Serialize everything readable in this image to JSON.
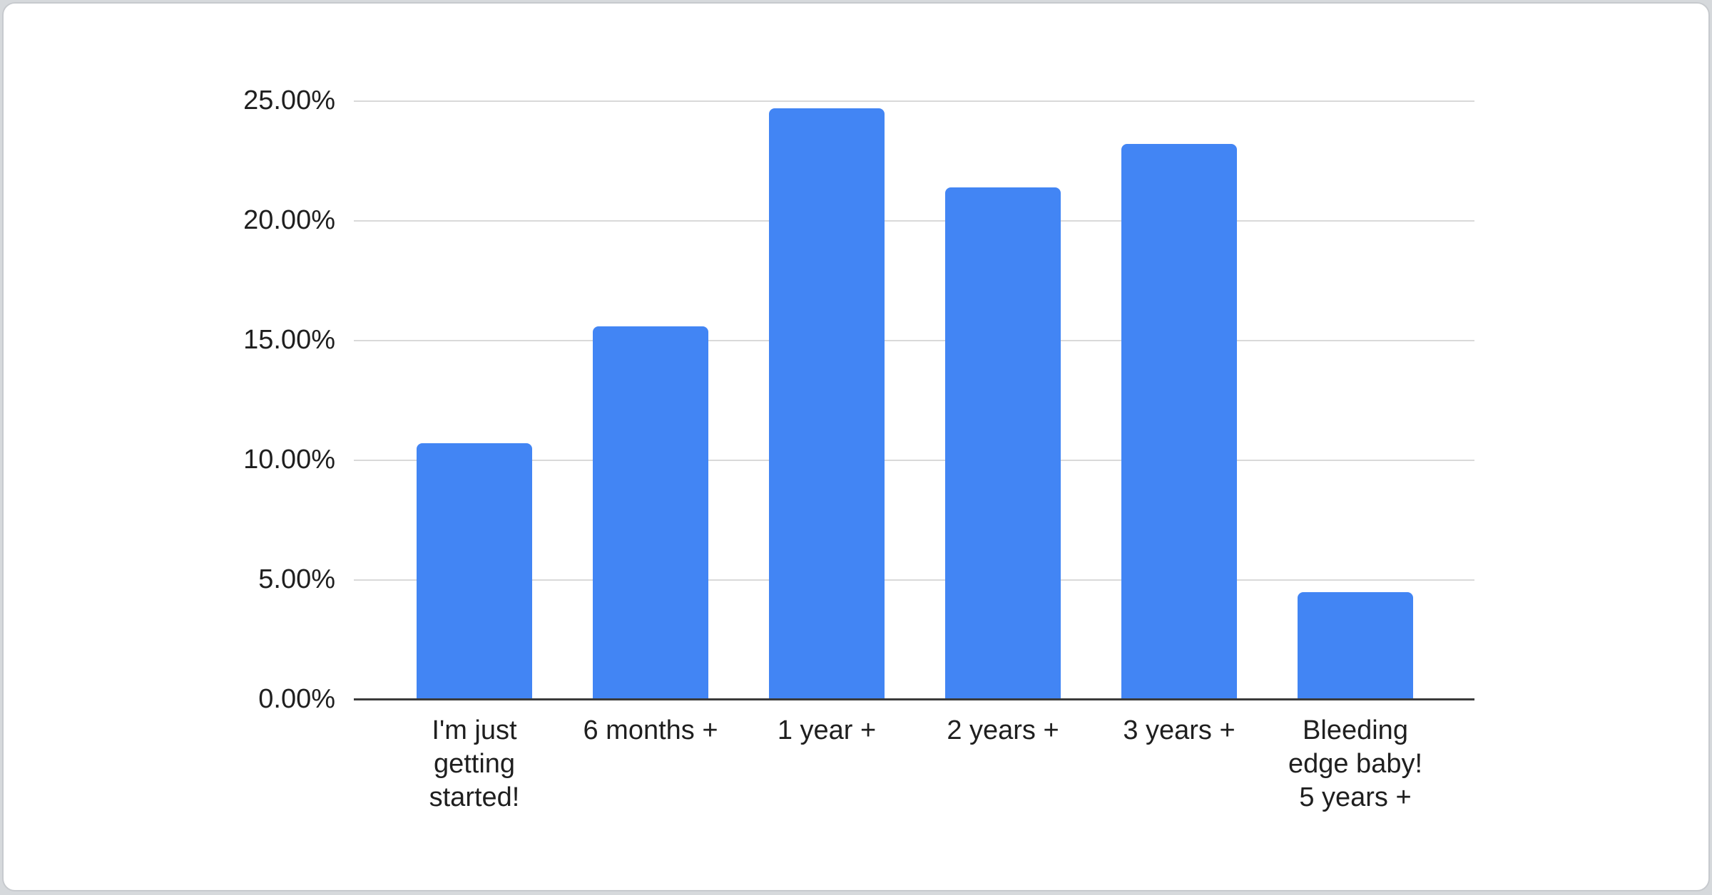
{
  "page": {
    "background_color": "#d6d9dc",
    "card_background_color": "#ffffff",
    "card_border_color": "#c7cace"
  },
  "chart_data": {
    "type": "bar",
    "title": "",
    "xlabel": "",
    "ylabel": "",
    "categories": [
      "I'm just getting started!",
      "6 months +",
      "1 year +",
      "2 years +",
      "3 years +",
      "Bleeding edge baby! 5 years +"
    ],
    "values": [
      10.7,
      15.6,
      24.7,
      21.4,
      23.2,
      4.5
    ],
    "value_unit": "%",
    "ylim": [
      0,
      25
    ],
    "ytick_step": 5,
    "ytick_labels": [
      "0.00%",
      "5.00%",
      "10.00%",
      "15.00%",
      "20.00%",
      "25.00%"
    ],
    "grid": true,
    "legend": false,
    "bar_color": "#4285f4",
    "gridline_color": "#d9d9d9",
    "axis_line_color": "#3b3b3b",
    "text_color": "#1f1f1f"
  }
}
